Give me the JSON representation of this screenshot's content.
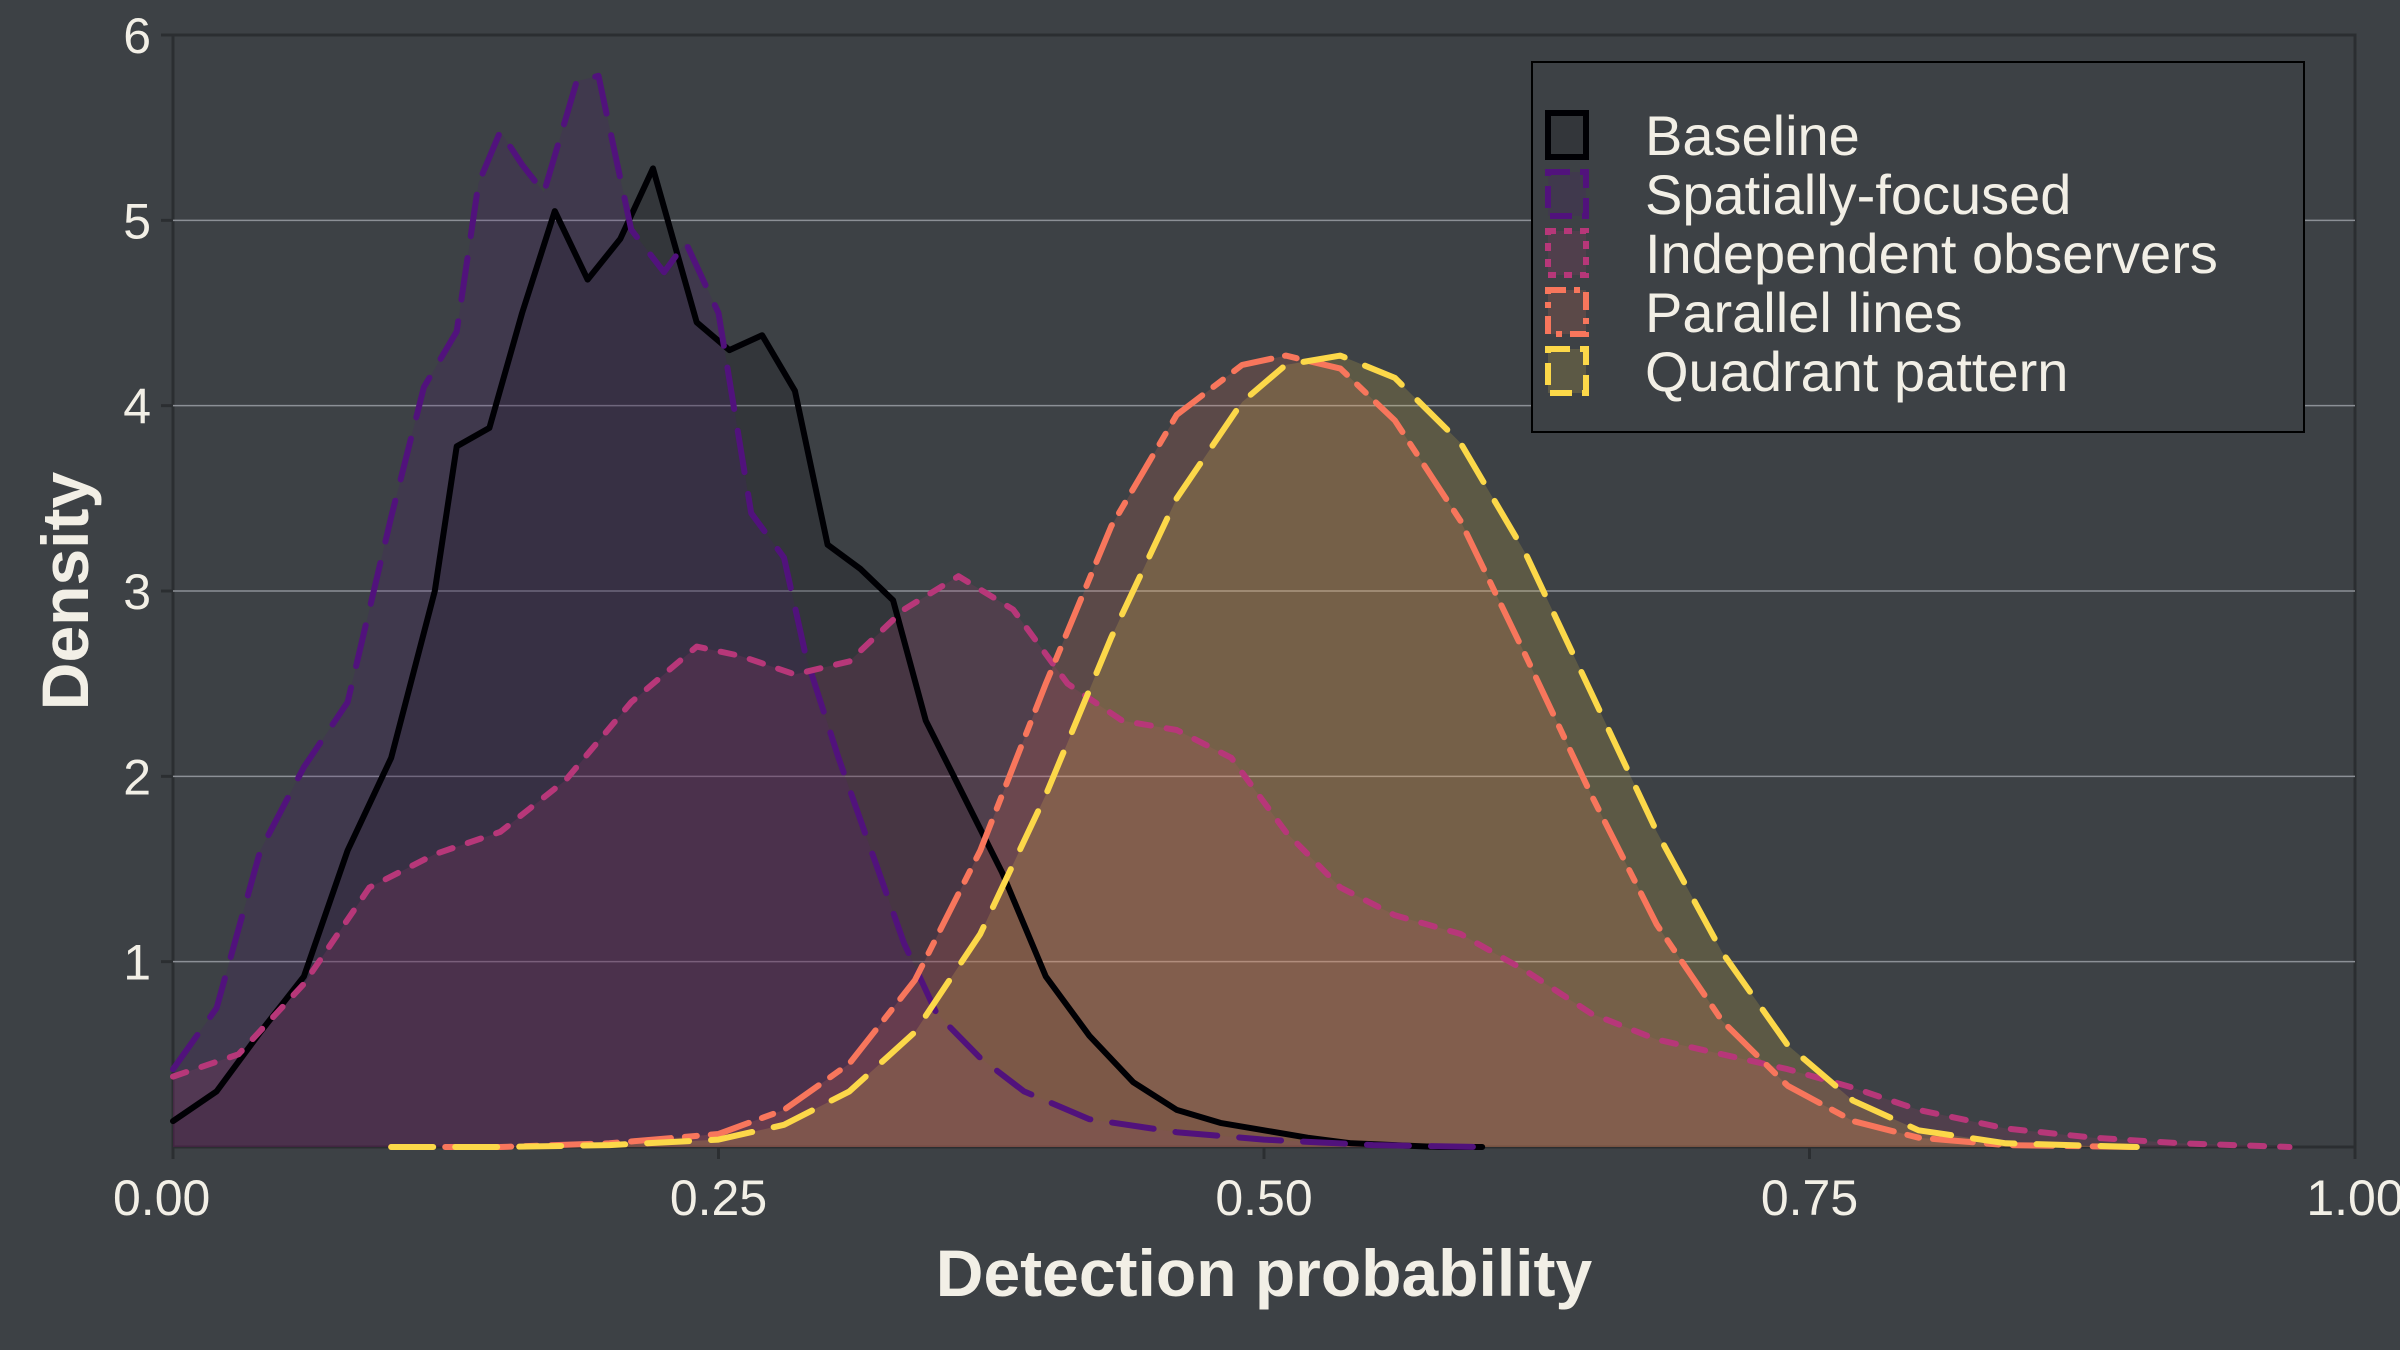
{
  "chart_data": {
    "type": "area",
    "title": "",
    "xlabel": "Detection probability",
    "ylabel": "Density",
    "xlim": [
      0,
      1
    ],
    "ylim": [
      0,
      6
    ],
    "x_ticks": [
      "0.00",
      "0.25",
      "0.50",
      "0.75",
      "1.00"
    ],
    "y_ticks": [
      "1",
      "2",
      "3",
      "4",
      "5",
      "6"
    ],
    "grid": "horizontal",
    "legend_position": "top-right",
    "background_color": "#3d4145",
    "series": [
      {
        "name": "Baseline",
        "color": "#000004",
        "dash": "solid",
        "points": [
          [
            0.0,
            0.14
          ],
          [
            0.02,
            0.3
          ],
          [
            0.04,
            0.62
          ],
          [
            0.06,
            0.92
          ],
          [
            0.08,
            1.6
          ],
          [
            0.1,
            2.1
          ],
          [
            0.12,
            3.0
          ],
          [
            0.13,
            3.78
          ],
          [
            0.145,
            3.88
          ],
          [
            0.16,
            4.5
          ],
          [
            0.175,
            5.05
          ],
          [
            0.19,
            4.68
          ],
          [
            0.205,
            4.9
          ],
          [
            0.22,
            5.28
          ],
          [
            0.24,
            4.45
          ],
          [
            0.255,
            4.3
          ],
          [
            0.27,
            4.38
          ],
          [
            0.285,
            4.08
          ],
          [
            0.3,
            3.25
          ],
          [
            0.315,
            3.12
          ],
          [
            0.33,
            2.95
          ],
          [
            0.345,
            2.3
          ],
          [
            0.36,
            1.95
          ],
          [
            0.38,
            1.48
          ],
          [
            0.4,
            0.92
          ],
          [
            0.42,
            0.6
          ],
          [
            0.44,
            0.35
          ],
          [
            0.46,
            0.2
          ],
          [
            0.48,
            0.13
          ],
          [
            0.5,
            0.09
          ],
          [
            0.52,
            0.05
          ],
          [
            0.54,
            0.02
          ],
          [
            0.56,
            0.01
          ],
          [
            0.58,
            0.0
          ],
          [
            0.6,
            0.0
          ]
        ]
      },
      {
        "name": "Spatially-focused",
        "color": "#51127c",
        "dash": "long-dash",
        "points": [
          [
            0.0,
            0.42
          ],
          [
            0.02,
            0.75
          ],
          [
            0.04,
            1.6
          ],
          [
            0.06,
            2.05
          ],
          [
            0.08,
            2.4
          ],
          [
            0.1,
            3.4
          ],
          [
            0.115,
            4.1
          ],
          [
            0.13,
            4.4
          ],
          [
            0.14,
            5.2
          ],
          [
            0.15,
            5.48
          ],
          [
            0.16,
            5.3
          ],
          [
            0.17,
            5.15
          ],
          [
            0.185,
            5.75
          ],
          [
            0.195,
            5.78
          ],
          [
            0.21,
            4.95
          ],
          [
            0.225,
            4.72
          ],
          [
            0.235,
            4.88
          ],
          [
            0.25,
            4.5
          ],
          [
            0.265,
            3.42
          ],
          [
            0.28,
            3.18
          ],
          [
            0.29,
            2.65
          ],
          [
            0.305,
            2.1
          ],
          [
            0.32,
            1.6
          ],
          [
            0.335,
            1.1
          ],
          [
            0.35,
            0.72
          ],
          [
            0.37,
            0.48
          ],
          [
            0.39,
            0.3
          ],
          [
            0.42,
            0.15
          ],
          [
            0.46,
            0.08
          ],
          [
            0.5,
            0.04
          ],
          [
            0.55,
            0.01
          ],
          [
            0.6,
            0.0
          ]
        ]
      },
      {
        "name": "Independent observers",
        "color": "#b73779",
        "dash": "short-dash",
        "points": [
          [
            0.0,
            0.38
          ],
          [
            0.03,
            0.5
          ],
          [
            0.06,
            0.88
          ],
          [
            0.09,
            1.4
          ],
          [
            0.12,
            1.58
          ],
          [
            0.15,
            1.7
          ],
          [
            0.18,
            1.98
          ],
          [
            0.21,
            2.4
          ],
          [
            0.24,
            2.7
          ],
          [
            0.26,
            2.65
          ],
          [
            0.285,
            2.55
          ],
          [
            0.31,
            2.62
          ],
          [
            0.335,
            2.9
          ],
          [
            0.36,
            3.08
          ],
          [
            0.385,
            2.9
          ],
          [
            0.41,
            2.5
          ],
          [
            0.435,
            2.3
          ],
          [
            0.46,
            2.25
          ],
          [
            0.485,
            2.1
          ],
          [
            0.51,
            1.7
          ],
          [
            0.535,
            1.4
          ],
          [
            0.56,
            1.25
          ],
          [
            0.59,
            1.15
          ],
          [
            0.62,
            0.95
          ],
          [
            0.65,
            0.72
          ],
          [
            0.68,
            0.58
          ],
          [
            0.71,
            0.5
          ],
          [
            0.74,
            0.42
          ],
          [
            0.77,
            0.32
          ],
          [
            0.8,
            0.2
          ],
          [
            0.84,
            0.1
          ],
          [
            0.88,
            0.05
          ],
          [
            0.92,
            0.02
          ],
          [
            0.97,
            0.0
          ]
        ]
      },
      {
        "name": "Parallel lines",
        "color": "#f8765c",
        "dash": "dash-dot",
        "points": [
          [
            0.1,
            0.0
          ],
          [
            0.15,
            0.0
          ],
          [
            0.2,
            0.02
          ],
          [
            0.25,
            0.07
          ],
          [
            0.28,
            0.2
          ],
          [
            0.31,
            0.45
          ],
          [
            0.34,
            0.9
          ],
          [
            0.37,
            1.6
          ],
          [
            0.4,
            2.5
          ],
          [
            0.43,
            3.35
          ],
          [
            0.46,
            3.95
          ],
          [
            0.49,
            4.22
          ],
          [
            0.51,
            4.27
          ],
          [
            0.535,
            4.2
          ],
          [
            0.56,
            3.92
          ],
          [
            0.59,
            3.38
          ],
          [
            0.62,
            2.65
          ],
          [
            0.65,
            1.9
          ],
          [
            0.68,
            1.2
          ],
          [
            0.71,
            0.68
          ],
          [
            0.74,
            0.33
          ],
          [
            0.77,
            0.14
          ],
          [
            0.8,
            0.05
          ],
          [
            0.84,
            0.01
          ],
          [
            0.9,
            0.0
          ]
        ]
      },
      {
        "name": "Quadrant pattern",
        "color": "#fcd849",
        "dash": "long-dash",
        "points": [
          [
            0.1,
            0.0
          ],
          [
            0.15,
            0.0
          ],
          [
            0.2,
            0.01
          ],
          [
            0.25,
            0.04
          ],
          [
            0.28,
            0.12
          ],
          [
            0.31,
            0.3
          ],
          [
            0.34,
            0.62
          ],
          [
            0.37,
            1.15
          ],
          [
            0.4,
            1.9
          ],
          [
            0.43,
            2.75
          ],
          [
            0.46,
            3.5
          ],
          [
            0.49,
            4.02
          ],
          [
            0.51,
            4.22
          ],
          [
            0.535,
            4.27
          ],
          [
            0.56,
            4.15
          ],
          [
            0.59,
            3.8
          ],
          [
            0.62,
            3.2
          ],
          [
            0.65,
            2.45
          ],
          [
            0.68,
            1.7
          ],
          [
            0.71,
            1.05
          ],
          [
            0.74,
            0.55
          ],
          [
            0.77,
            0.25
          ],
          [
            0.8,
            0.09
          ],
          [
            0.84,
            0.02
          ],
          [
            0.9,
            0.0
          ]
        ]
      }
    ]
  }
}
